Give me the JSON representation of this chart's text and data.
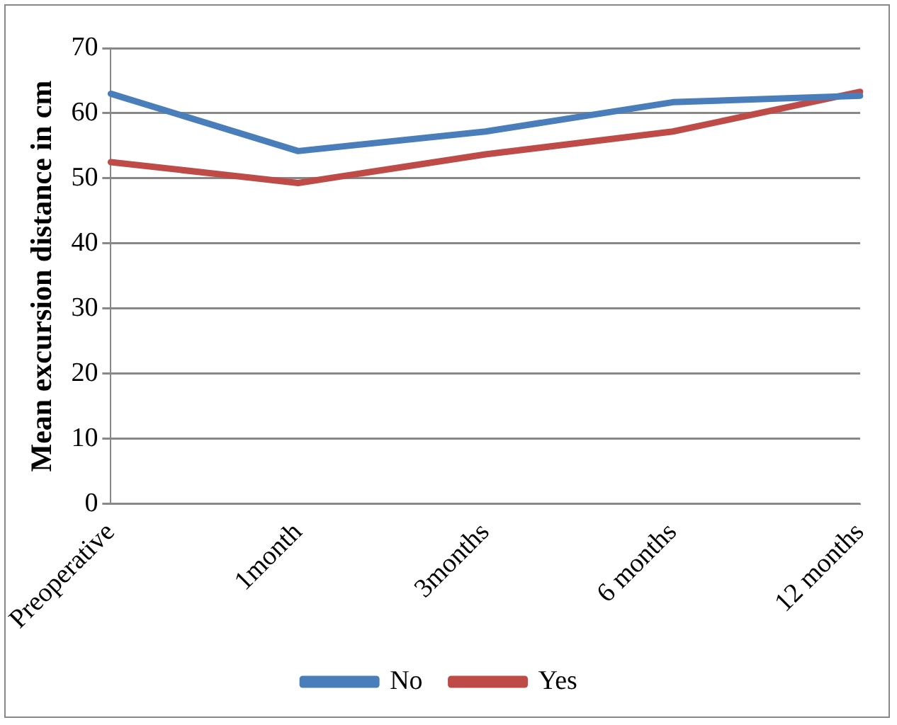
{
  "chart_data": {
    "type": "line",
    "ylabel": "Mean excursion distance in cm",
    "categories": [
      "Preoperative",
      "1month",
      "3months",
      "6 months",
      "12 months"
    ],
    "series": [
      {
        "name": "No",
        "color": "#4a7ebb",
        "values": [
          63,
          54.2,
          57.2,
          61.7,
          62.7
        ]
      },
      {
        "name": "Yes",
        "color": "#be4b48",
        "values": [
          52.5,
          49.3,
          53.7,
          57.2,
          63.3
        ]
      }
    ],
    "ylim": [
      0,
      70
    ],
    "yticks": [
      0,
      10,
      20,
      30,
      40,
      50,
      60,
      70
    ],
    "grid": "y",
    "legend": "bottom",
    "marker": "none",
    "line_style": "solid"
  }
}
